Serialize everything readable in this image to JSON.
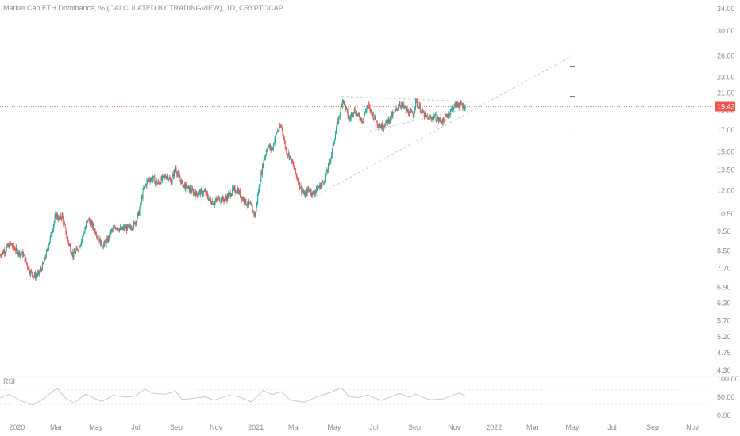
{
  "title": "Market Cap ETH Dominance, % (CALCULATED BY TRADINGVIEW), 1D, CRYPTOCAP",
  "colors": {
    "up": "#26a69a",
    "down": "#ef5350",
    "price_line": "#ef5350",
    "trendline": "#c9c9c9",
    "rsi_line": "#c8c8c8",
    "axis_text": "#8a8e99"
  },
  "chart_data": [
    {
      "type": "candlestick",
      "title": "Market Cap ETH Dominance, % (CALCULATED BY TRADINGVIEW), 1D, CRYPTOCAP",
      "y_scale": "log",
      "ylim": [
        4.2,
        34.5
      ],
      "y_ticks": [
        34.0,
        30.0,
        26.0,
        23.0,
        21.0,
        19.0,
        17.0,
        15.0,
        13.5,
        12.0,
        10.5,
        9.5,
        8.5,
        7.7,
        6.9,
        6.3,
        5.7,
        5.2,
        4.75,
        4.3
      ],
      "y_tick_labels": [
        "34.00",
        "30.00",
        "26.00",
        "23.00",
        "21.00",
        "19.00",
        "17.00",
        "15.00",
        "13.50",
        "12.00",
        "10.50",
        "9.50",
        "8.50",
        "7.70",
        "6.90",
        "6.30",
        "5.70",
        "5.20",
        "4.75",
        "4.30"
      ],
      "x_range": [
        "2019-12-06",
        "2022-11-30"
      ],
      "x_tick_labels": [
        "2020",
        "Mar",
        "May",
        "Jul",
        "Sep",
        "Nov",
        "2021",
        "Mar",
        "May",
        "Jul",
        "Sep",
        "Nov",
        "2022",
        "Mar",
        "May",
        "Jul",
        "Sep",
        "Nov"
      ],
      "x_tick_dates": [
        "2020-01-01",
        "2020-03-01",
        "2020-05-01",
        "2020-07-01",
        "2020-09-01",
        "2020-11-01",
        "2021-01-01",
        "2021-03-01",
        "2021-05-01",
        "2021-07-01",
        "2021-09-01",
        "2021-11-01",
        "2022-01-01",
        "2022-03-01",
        "2022-05-01",
        "2022-07-01",
        "2022-09-01",
        "2022-11-01"
      ],
      "last_price": 19.43,
      "last_price_label": "19.43",
      "close_path": [
        [
          "2019-12-06",
          8.3
        ],
        [
          "2019-12-15",
          8.6
        ],
        [
          "2019-12-22",
          8.85
        ],
        [
          "2020-01-01",
          8.5
        ],
        [
          "2020-01-10",
          8.35
        ],
        [
          "2020-01-20",
          7.6
        ],
        [
          "2020-01-27",
          7.35
        ],
        [
          "2020-02-03",
          7.45
        ],
        [
          "2020-02-10",
          7.85
        ],
        [
          "2020-02-17",
          8.6
        ],
        [
          "2020-02-24",
          9.6
        ],
        [
          "2020-03-01",
          10.5
        ],
        [
          "2020-03-05",
          10.2
        ],
        [
          "2020-03-10",
          10.4
        ],
        [
          "2020-03-15",
          9.6
        ],
        [
          "2020-03-20",
          8.9
        ],
        [
          "2020-03-27",
          8.3
        ],
        [
          "2020-04-05",
          8.7
        ],
        [
          "2020-04-12",
          9.4
        ],
        [
          "2020-04-19",
          10.2
        ],
        [
          "2020-04-26",
          9.8
        ],
        [
          "2020-05-03",
          9.3
        ],
        [
          "2020-05-10",
          8.8
        ],
        [
          "2020-05-17",
          8.9
        ],
        [
          "2020-05-24",
          9.5
        ],
        [
          "2020-06-01",
          9.8
        ],
        [
          "2020-06-08",
          9.6
        ],
        [
          "2020-06-15",
          9.7
        ],
        [
          "2020-06-22",
          9.7
        ],
        [
          "2020-06-29",
          9.9
        ],
        [
          "2020-07-06",
          10.6
        ],
        [
          "2020-07-13",
          12.1
        ],
        [
          "2020-07-20",
          12.8
        ],
        [
          "2020-07-27",
          12.9
        ],
        [
          "2020-08-03",
          12.5
        ],
        [
          "2020-08-10",
          12.8
        ],
        [
          "2020-08-17",
          13.1
        ],
        [
          "2020-08-24",
          12.6
        ],
        [
          "2020-08-31",
          13.7
        ],
        [
          "2020-09-03",
          13.2
        ],
        [
          "2020-09-10",
          12.5
        ],
        [
          "2020-09-17",
          12.2
        ],
        [
          "2020-09-24",
          12.0
        ],
        [
          "2020-10-01",
          11.8
        ],
        [
          "2020-10-08",
          11.9
        ],
        [
          "2020-10-15",
          11.9
        ],
        [
          "2020-10-22",
          11.4
        ],
        [
          "2020-10-29",
          11.2
        ],
        [
          "2020-11-05",
          11.5
        ],
        [
          "2020-11-12",
          11.4
        ],
        [
          "2020-11-19",
          11.6
        ],
        [
          "2020-11-26",
          12.0
        ],
        [
          "2020-12-03",
          12.1
        ],
        [
          "2020-12-10",
          11.6
        ],
        [
          "2020-12-17",
          11.2
        ],
        [
          "2020-12-24",
          11.0
        ],
        [
          "2020-12-31",
          10.4
        ],
        [
          "2021-01-05",
          12.0
        ],
        [
          "2021-01-12",
          14.0
        ],
        [
          "2021-01-19",
          15.5
        ],
        [
          "2021-01-26",
          15.2
        ],
        [
          "2021-02-02",
          16.8
        ],
        [
          "2021-02-09",
          17.4
        ],
        [
          "2021-02-16",
          15.2
        ],
        [
          "2021-02-23",
          14.5
        ],
        [
          "2021-03-02",
          13.4
        ],
        [
          "2021-03-09",
          12.4
        ],
        [
          "2021-03-16",
          11.7
        ],
        [
          "2021-03-23",
          12.1
        ],
        [
          "2021-03-30",
          11.8
        ],
        [
          "2021-04-06",
          12.2
        ],
        [
          "2021-04-13",
          12.5
        ],
        [
          "2021-04-20",
          13.4
        ],
        [
          "2021-04-27",
          14.8
        ],
        [
          "2021-05-04",
          17.0
        ],
        [
          "2021-05-10",
          18.8
        ],
        [
          "2021-05-14",
          20.3
        ],
        [
          "2021-05-19",
          19.2
        ],
        [
          "2021-05-24",
          18.0
        ],
        [
          "2021-05-31",
          19.1
        ],
        [
          "2021-06-07",
          18.4
        ],
        [
          "2021-06-14",
          18.0
        ],
        [
          "2021-06-21",
          19.6
        ],
        [
          "2021-06-28",
          18.7
        ],
        [
          "2021-07-05",
          17.8
        ],
        [
          "2021-07-12",
          17.3
        ],
        [
          "2021-07-19",
          17.7
        ],
        [
          "2021-07-26",
          18.2
        ],
        [
          "2021-08-02",
          18.8
        ],
        [
          "2021-08-09",
          19.8
        ],
        [
          "2021-08-16",
          19.3
        ],
        [
          "2021-08-23",
          18.8
        ],
        [
          "2021-08-30",
          18.6
        ],
        [
          "2021-09-03",
          20.0
        ],
        [
          "2021-09-10",
          19.2
        ],
        [
          "2021-09-17",
          18.4
        ],
        [
          "2021-09-24",
          18.1
        ],
        [
          "2021-10-01",
          18.4
        ],
        [
          "2021-10-08",
          18.0
        ],
        [
          "2021-10-15",
          17.9
        ],
        [
          "2021-10-22",
          18.6
        ],
        [
          "2021-10-29",
          19.2
        ],
        [
          "2021-11-05",
          19.8
        ],
        [
          "2021-11-12",
          19.6
        ],
        [
          "2021-11-18",
          19.43
        ]
      ],
      "drawings": {
        "upper_trendline": [
          [
            "2021-05-12",
            20.6
          ],
          [
            "2021-11-25",
            20.0
          ]
        ],
        "lower_trendline": [
          [
            "2021-03-28",
            11.5
          ],
          [
            "2022-05-01",
            26.0
          ]
        ],
        "support_line": [
          [
            "2021-06-25",
            16.9
          ],
          [
            "2021-11-20",
            19.2
          ]
        ],
        "target_marks": [
          24.5,
          20.6,
          16.8
        ],
        "target_marks_date": "2022-05-01"
      }
    },
    {
      "type": "line",
      "title": "RSI",
      "ylim": [
        0,
        100
      ],
      "y_ticks": [
        100,
        50,
        0
      ],
      "y_tick_labels": [
        "100.00",
        "50.00",
        "0.00"
      ],
      "band": [
        30,
        70
      ],
      "series": [
        {
          "values": [
            [
              "2019-12-06",
              48
            ],
            [
              "2019-12-20",
              58
            ],
            [
              "2020-01-05",
              42
            ],
            [
              "2020-01-25",
              28
            ],
            [
              "2020-02-10",
              45
            ],
            [
              "2020-02-25",
              66
            ],
            [
              "2020-03-03",
              74
            ],
            [
              "2020-03-15",
              48
            ],
            [
              "2020-03-28",
              34
            ],
            [
              "2020-04-15",
              58
            ],
            [
              "2020-04-26",
              49
            ],
            [
              "2020-05-10",
              38
            ],
            [
              "2020-05-28",
              55
            ],
            [
              "2020-06-15",
              50
            ],
            [
              "2020-06-30",
              53
            ],
            [
              "2020-07-15",
              72
            ],
            [
              "2020-07-28",
              60
            ],
            [
              "2020-08-15",
              58
            ],
            [
              "2020-08-31",
              66
            ],
            [
              "2020-09-10",
              44
            ],
            [
              "2020-09-25",
              46
            ],
            [
              "2020-10-15",
              51
            ],
            [
              "2020-10-29",
              42
            ],
            [
              "2020-11-20",
              55
            ],
            [
              "2020-12-05",
              52
            ],
            [
              "2020-12-25",
              37
            ],
            [
              "2021-01-12",
              68
            ],
            [
              "2021-01-26",
              57
            ],
            [
              "2021-02-09",
              65
            ],
            [
              "2021-02-23",
              42
            ],
            [
              "2021-03-16",
              36
            ],
            [
              "2021-04-06",
              52
            ],
            [
              "2021-04-27",
              64
            ],
            [
              "2021-05-12",
              76
            ],
            [
              "2021-05-24",
              51
            ],
            [
              "2021-06-07",
              49
            ],
            [
              "2021-06-21",
              56
            ],
            [
              "2021-07-12",
              41
            ],
            [
              "2021-08-09",
              60
            ],
            [
              "2021-08-25",
              50
            ],
            [
              "2021-09-03",
              58
            ],
            [
              "2021-09-24",
              43
            ],
            [
              "2021-10-15",
              45
            ],
            [
              "2021-10-29",
              55
            ],
            [
              "2021-11-08",
              61
            ],
            [
              "2021-11-18",
              54
            ]
          ]
        }
      ],
      "x_range": [
        "2019-12-06",
        "2022-11-30"
      ]
    }
  ],
  "rsi_label": "RSI"
}
